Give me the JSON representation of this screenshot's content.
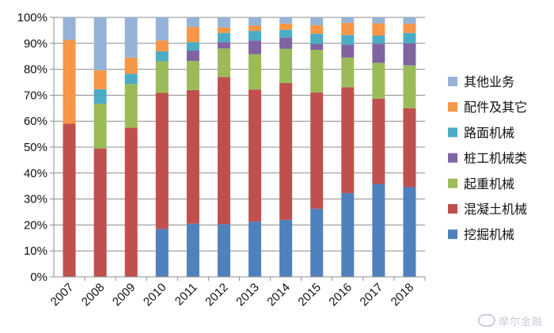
{
  "chart_data": {
    "type": "bar",
    "stacked": true,
    "percent": true,
    "categories": [
      "2007",
      "2008",
      "2009",
      "2010",
      "2011",
      "2012",
      "2013",
      "2014",
      "2015",
      "2016",
      "2017",
      "2018"
    ],
    "series": [
      {
        "name": "挖掘机械",
        "color": "#4f81bd",
        "values": [
          0,
          0,
          0,
          18.5,
          20.5,
          20.3,
          21.3,
          22.0,
          26.3,
          32.3,
          35.8,
          34.6
        ]
      },
      {
        "name": "混凝土机械",
        "color": "#c0504d",
        "values": [
          59.0,
          49.5,
          57.5,
          52.4,
          51.5,
          56.7,
          50.9,
          52.7,
          44.8,
          40.8,
          32.9,
          30.4
        ]
      },
      {
        "name": "起重机械",
        "color": "#9bbb59",
        "values": [
          0,
          17.2,
          16.8,
          12.2,
          11.2,
          11.0,
          13.6,
          13.2,
          16.4,
          11.4,
          13.8,
          16.5
        ]
      },
      {
        "name": "桩工机械类",
        "color": "#8064a2",
        "values": [
          0,
          0,
          0,
          0,
          4.0,
          2.5,
          5.2,
          4.3,
          2.3,
          5.0,
          7.4,
          8.5
        ]
      },
      {
        "name": "路面机械",
        "color": "#4bacc6",
        "values": [
          0,
          5.6,
          4.0,
          3.8,
          3.3,
          3.5,
          3.8,
          3.0,
          3.9,
          3.7,
          3.1,
          4.0
        ]
      },
      {
        "name": "配件及其它",
        "color": "#f79646",
        "values": [
          32.3,
          7.3,
          6.2,
          4.2,
          5.8,
          2.1,
          2.0,
          2.4,
          3.3,
          4.7,
          4.7,
          3.6
        ]
      },
      {
        "name": "其他业务",
        "color": "#95b3d7",
        "values": [
          8.7,
          20.4,
          15.5,
          8.9,
          3.7,
          3.9,
          3.2,
          2.4,
          3.0,
          2.1,
          2.3,
          2.4
        ]
      }
    ],
    "legend_order": [
      "其他业务",
      "配件及其它",
      "路面机械",
      "桩工机械类",
      "起重机械",
      "混凝土机械",
      "挖掘机械"
    ],
    "ylim": [
      0,
      100
    ],
    "yticks": [
      "0%",
      "10%",
      "20%",
      "30%",
      "40%",
      "50%",
      "60%",
      "70%",
      "80%",
      "90%",
      "100%"
    ],
    "grid": true,
    "legend_position": "right",
    "title": "",
    "xlabel": "",
    "ylabel": ""
  },
  "watermark": {
    "text": "摩尔金融",
    "icon": "cloud-logo-icon"
  }
}
